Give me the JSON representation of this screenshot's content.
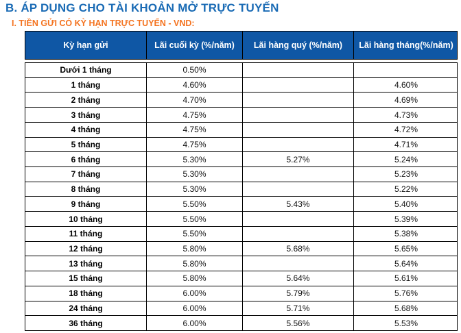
{
  "page": {
    "title": "B. ÁP DỤNG CHO TÀI KHOẢN MỞ TRỰC TUYẾN",
    "subtitle": "I. TIỀN GỬI CÓ KỲ HẠN TRỰC TUYẾN - VND:"
  },
  "colors": {
    "title_blue": "#1A6BB5",
    "subtitle_orange": "#F4731F",
    "header_bg": "#0F57A5",
    "header_text": "#FFFFFF",
    "border": "#000000"
  },
  "table": {
    "columns": [
      "Kỳ hạn gửi",
      "Lãi cuối kỳ (%/năm)",
      "Lãi hàng quý (%/năm)",
      "Lãi hàng tháng(%/năm)"
    ],
    "rows": [
      {
        "term": "Dưới 1 tháng",
        "end_of_term": "0.50%",
        "quarterly": "",
        "monthly": ""
      },
      {
        "term": "1 tháng",
        "end_of_term": "4.60%",
        "quarterly": "",
        "monthly": "4.60%"
      },
      {
        "term": "2 tháng",
        "end_of_term": "4.70%",
        "quarterly": "",
        "monthly": "4.69%"
      },
      {
        "term": "3 tháng",
        "end_of_term": "4.75%",
        "quarterly": "",
        "monthly": "4.73%"
      },
      {
        "term": "4 tháng",
        "end_of_term": "4.75%",
        "quarterly": "",
        "monthly": "4.72%"
      },
      {
        "term": "5 tháng",
        "end_of_term": "4.75%",
        "quarterly": "",
        "monthly": "4.71%"
      },
      {
        "term": "6 tháng",
        "end_of_term": "5.30%",
        "quarterly": "5.27%",
        "monthly": "5.24%"
      },
      {
        "term": "7 tháng",
        "end_of_term": "5.30%",
        "quarterly": "",
        "monthly": "5.23%"
      },
      {
        "term": "8 tháng",
        "end_of_term": "5.30%",
        "quarterly": "",
        "monthly": "5.22%"
      },
      {
        "term": "9 tháng",
        "end_of_term": "5.50%",
        "quarterly": "5.43%",
        "monthly": "5.40%"
      },
      {
        "term": "10 tháng",
        "end_of_term": "5.50%",
        "quarterly": "",
        "monthly": "5.39%"
      },
      {
        "term": "11 tháng",
        "end_of_term": "5.50%",
        "quarterly": "",
        "monthly": "5.38%"
      },
      {
        "term": "12 tháng",
        "end_of_term": "5.80%",
        "quarterly": "5.68%",
        "monthly": "5.65%"
      },
      {
        "term": "13 tháng",
        "end_of_term": "5.80%",
        "quarterly": "",
        "monthly": "5.64%"
      },
      {
        "term": "15 tháng",
        "end_of_term": "5.80%",
        "quarterly": "5.64%",
        "monthly": "5.61%"
      },
      {
        "term": "18 tháng",
        "end_of_term": "6.00%",
        "quarterly": "5.79%",
        "monthly": "5.76%"
      },
      {
        "term": "24 tháng",
        "end_of_term": "6.00%",
        "quarterly": "5.71%",
        "monthly": "5.68%"
      },
      {
        "term": "36 tháng",
        "end_of_term": "6.00%",
        "quarterly": "5.56%",
        "monthly": "5.53%"
      }
    ]
  }
}
